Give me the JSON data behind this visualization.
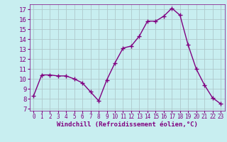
{
  "x": [
    0,
    1,
    2,
    3,
    4,
    5,
    6,
    7,
    8,
    9,
    10,
    11,
    12,
    13,
    14,
    15,
    16,
    17,
    18,
    19,
    20,
    21,
    22,
    23
  ],
  "y": [
    8.3,
    10.4,
    10.4,
    10.3,
    10.3,
    10.0,
    9.6,
    8.7,
    7.8,
    9.9,
    11.6,
    13.1,
    13.3,
    14.3,
    15.8,
    15.8,
    16.3,
    17.1,
    16.4,
    13.4,
    11.0,
    9.4,
    8.1,
    7.5
  ],
  "line_color": "#800080",
  "marker": "+",
  "bg_color": "#c8eef0",
  "grid_color": "#b0c8cc",
  "xlabel": "Windchill (Refroidissement éolien,°C)",
  "ylabel_ticks": [
    7,
    8,
    9,
    10,
    11,
    12,
    13,
    14,
    15,
    16,
    17
  ],
  "ylim": [
    6.8,
    17.5
  ],
  "xlim": [
    -0.5,
    23.5
  ],
  "xlabel_fontsize": 6.5,
  "ylabel_fontsize": 6.5,
  "xtick_fontsize": 5.5,
  "ytick_fontsize": 6.5
}
